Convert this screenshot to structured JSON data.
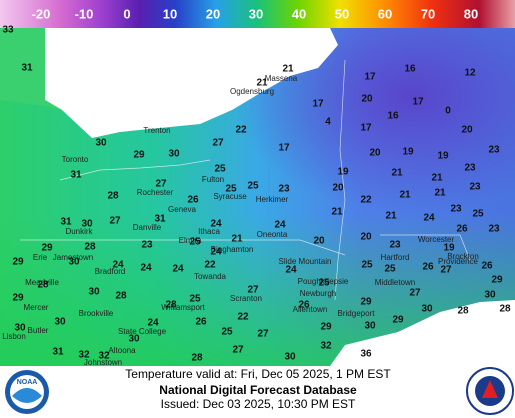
{
  "colorbar": {
    "ticks": [
      -20,
      -10,
      0,
      10,
      20,
      30,
      40,
      50,
      60,
      70,
      80
    ]
  },
  "map": {
    "temperatures": [
      33,
      31,
      21,
      21,
      17,
      16,
      12,
      17,
      20,
      17,
      0,
      4,
      16,
      17,
      20,
      22,
      27,
      30,
      29,
      30,
      17,
      20,
      19,
      19,
      23,
      31,
      25,
      19,
      21,
      21,
      23,
      27,
      25,
      25,
      23,
      20,
      21,
      21,
      23,
      28,
      26,
      22,
      23,
      25,
      31,
      30,
      27,
      31,
      24,
      21,
      21,
      24,
      23,
      26,
      21,
      24,
      20,
      20,
      23,
      29,
      28,
      23,
      25,
      24,
      19,
      29,
      30,
      24,
      24,
      24,
      22,
      24,
      25,
      25,
      26,
      27,
      26,
      29,
      28,
      25,
      29,
      28,
      25,
      27,
      27,
      30,
      30,
      28,
      26,
      29,
      30,
      28,
      28,
      30,
      24,
      26,
      22,
      25,
      27,
      29,
      30,
      29,
      30,
      30,
      31,
      32,
      32,
      27,
      28,
      30,
      32,
      36
    ],
    "cities": [
      "Trenton",
      "Toronto",
      "Ogdensburg",
      "Massena",
      "Rochester",
      "Fulton",
      "Syracuse",
      "Herkimer",
      "Geneva",
      "Dunkirk",
      "Danville",
      "Ithaca",
      "Oneonta",
      "Elmira",
      "Binghamton",
      "Jamestown",
      "Erie",
      "Bradford",
      "Meadville",
      "Towanda",
      "Slide Mountain",
      "Scranton",
      "Williamsport",
      "State College",
      "Altoona",
      "Johnstown",
      "Brookville",
      "Butler",
      "Mercer",
      "Lisbon",
      "Allentown",
      "Poughkeepsie",
      "Newburgh",
      "Bridgeport",
      "Hartford",
      "Middletown",
      "Providence",
      "Brockton",
      "Worcester"
    ]
  },
  "footer": {
    "valid": "Temperature valid at: Fri, Dec 05 2025, 1 PM EST",
    "title": "National Digital Forecast Database",
    "issued": "Issued: Dec 03 2025, 10:30 PM EST",
    "noaa": "NOAA"
  }
}
